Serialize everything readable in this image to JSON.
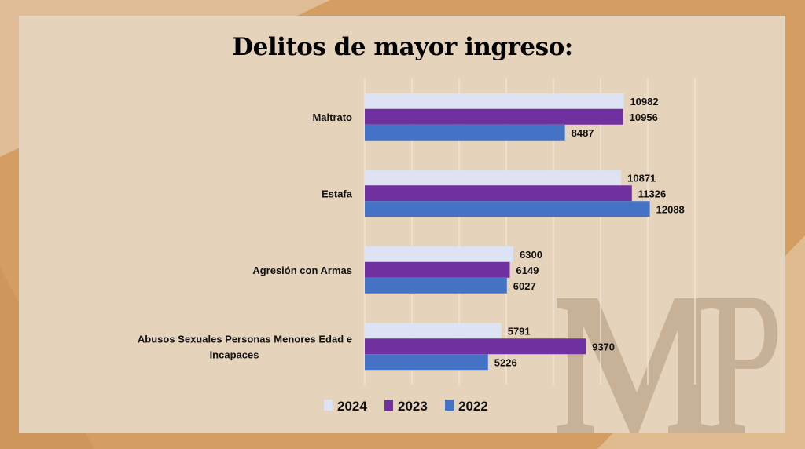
{
  "chart_data": {
    "type": "bar",
    "orientation": "horizontal",
    "title": "Delitos de mayor ingreso:",
    "categories": [
      "Maltrato",
      "Estafa",
      "Agresión con Armas",
      "Abusos Sexuales Personas Menores Edad e Incapaces"
    ],
    "category_lines": [
      [
        "Maltrato"
      ],
      [
        "Estafa"
      ],
      [
        "Agresión con Armas"
      ],
      [
        "Abusos Sexuales Personas Menores Edad e",
        "Incapaces"
      ]
    ],
    "series": [
      {
        "name": "2024",
        "color": "#dde3f2",
        "values": [
          10982,
          10871,
          6300,
          5791
        ]
      },
      {
        "name": "2023",
        "color": "#7030a0",
        "values": [
          10956,
          11326,
          6149,
          9370
        ]
      },
      {
        "name": "2022",
        "color": "#4472c4",
        "values": [
          8487,
          12088,
          6027,
          5226
        ]
      }
    ],
    "xlim": [
      0,
      14000
    ],
    "grid": true,
    "data_labels": true,
    "legend": "bottom",
    "xlabel": "",
    "ylabel": ""
  },
  "watermark": "MP"
}
